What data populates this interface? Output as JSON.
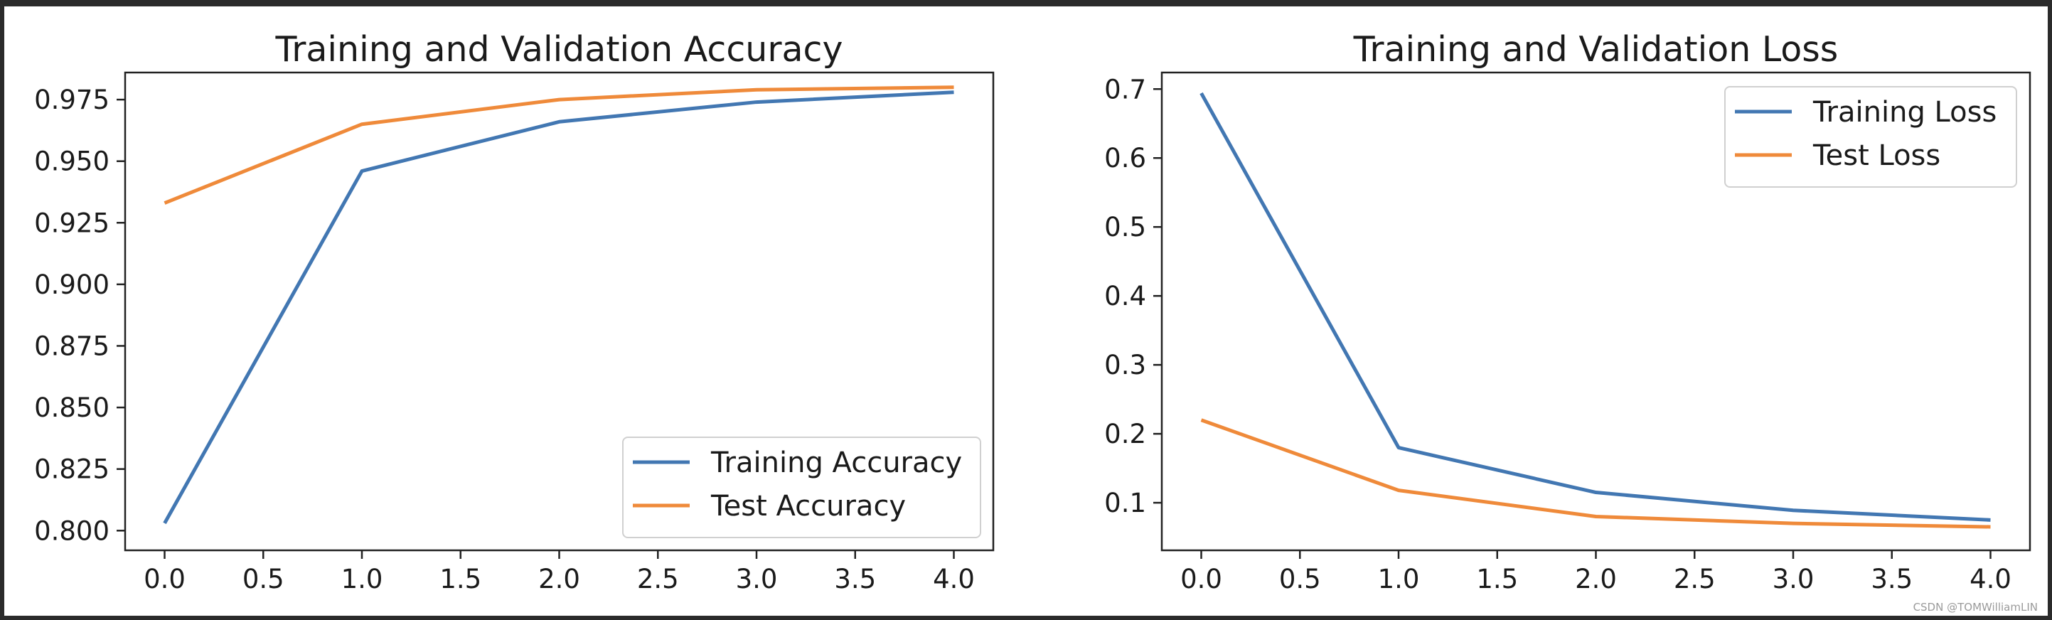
{
  "watermark": "CSDN @TOMWilliamLIN",
  "colors": {
    "training": "#4277b2",
    "test": "#ef8a3a",
    "axis": "#222222"
  },
  "chart_data": [
    {
      "type": "line",
      "title": "Training and Validation Accuracy",
      "xlabel": "",
      "ylabel": "",
      "x": [
        0,
        1,
        2,
        3,
        4
      ],
      "xlim": [
        -0.2,
        4.2
      ],
      "ylim": [
        0.792,
        0.986
      ],
      "xticks": [
        0.0,
        0.5,
        1.0,
        1.5,
        2.0,
        2.5,
        3.0,
        3.5,
        4.0
      ],
      "xtick_labels": [
        "0.0",
        "0.5",
        "1.0",
        "1.5",
        "2.0",
        "2.5",
        "3.0",
        "3.5",
        "4.0"
      ],
      "yticks": [
        0.8,
        0.825,
        0.85,
        0.875,
        0.9,
        0.925,
        0.95,
        0.975
      ],
      "ytick_labels": [
        "0.800",
        "0.825",
        "0.850",
        "0.875",
        "0.900",
        "0.925",
        "0.950",
        "0.975"
      ],
      "legend_position": "lower-right",
      "grid": false,
      "series": [
        {
          "name": "Training Accuracy",
          "color_key": "training",
          "values": [
            0.803,
            0.946,
            0.966,
            0.974,
            0.978
          ]
        },
        {
          "name": "Test Accuracy",
          "color_key": "test",
          "values": [
            0.933,
            0.965,
            0.975,
            0.979,
            0.98
          ]
        }
      ]
    },
    {
      "type": "line",
      "title": "Training and Validation Loss",
      "xlabel": "",
      "ylabel": "",
      "x": [
        0,
        1,
        2,
        3,
        4
      ],
      "xlim": [
        -0.2,
        4.2
      ],
      "ylim": [
        0.031,
        0.724
      ],
      "xticks": [
        0.0,
        0.5,
        1.0,
        1.5,
        2.0,
        2.5,
        3.0,
        3.5,
        4.0
      ],
      "xtick_labels": [
        "0.0",
        "0.5",
        "1.0",
        "1.5",
        "2.0",
        "2.5",
        "3.0",
        "3.5",
        "4.0"
      ],
      "yticks": [
        0.1,
        0.2,
        0.3,
        0.4,
        0.5,
        0.6,
        0.7
      ],
      "ytick_labels": [
        "0.1",
        "0.2",
        "0.3",
        "0.4",
        "0.5",
        "0.6",
        "0.7"
      ],
      "legend_position": "upper-right",
      "grid": false,
      "series": [
        {
          "name": "Training Loss",
          "color_key": "training",
          "values": [
            0.694,
            0.18,
            0.115,
            0.089,
            0.075
          ]
        },
        {
          "name": "Test Loss",
          "color_key": "test",
          "values": [
            0.22,
            0.118,
            0.08,
            0.07,
            0.065
          ]
        }
      ]
    }
  ]
}
